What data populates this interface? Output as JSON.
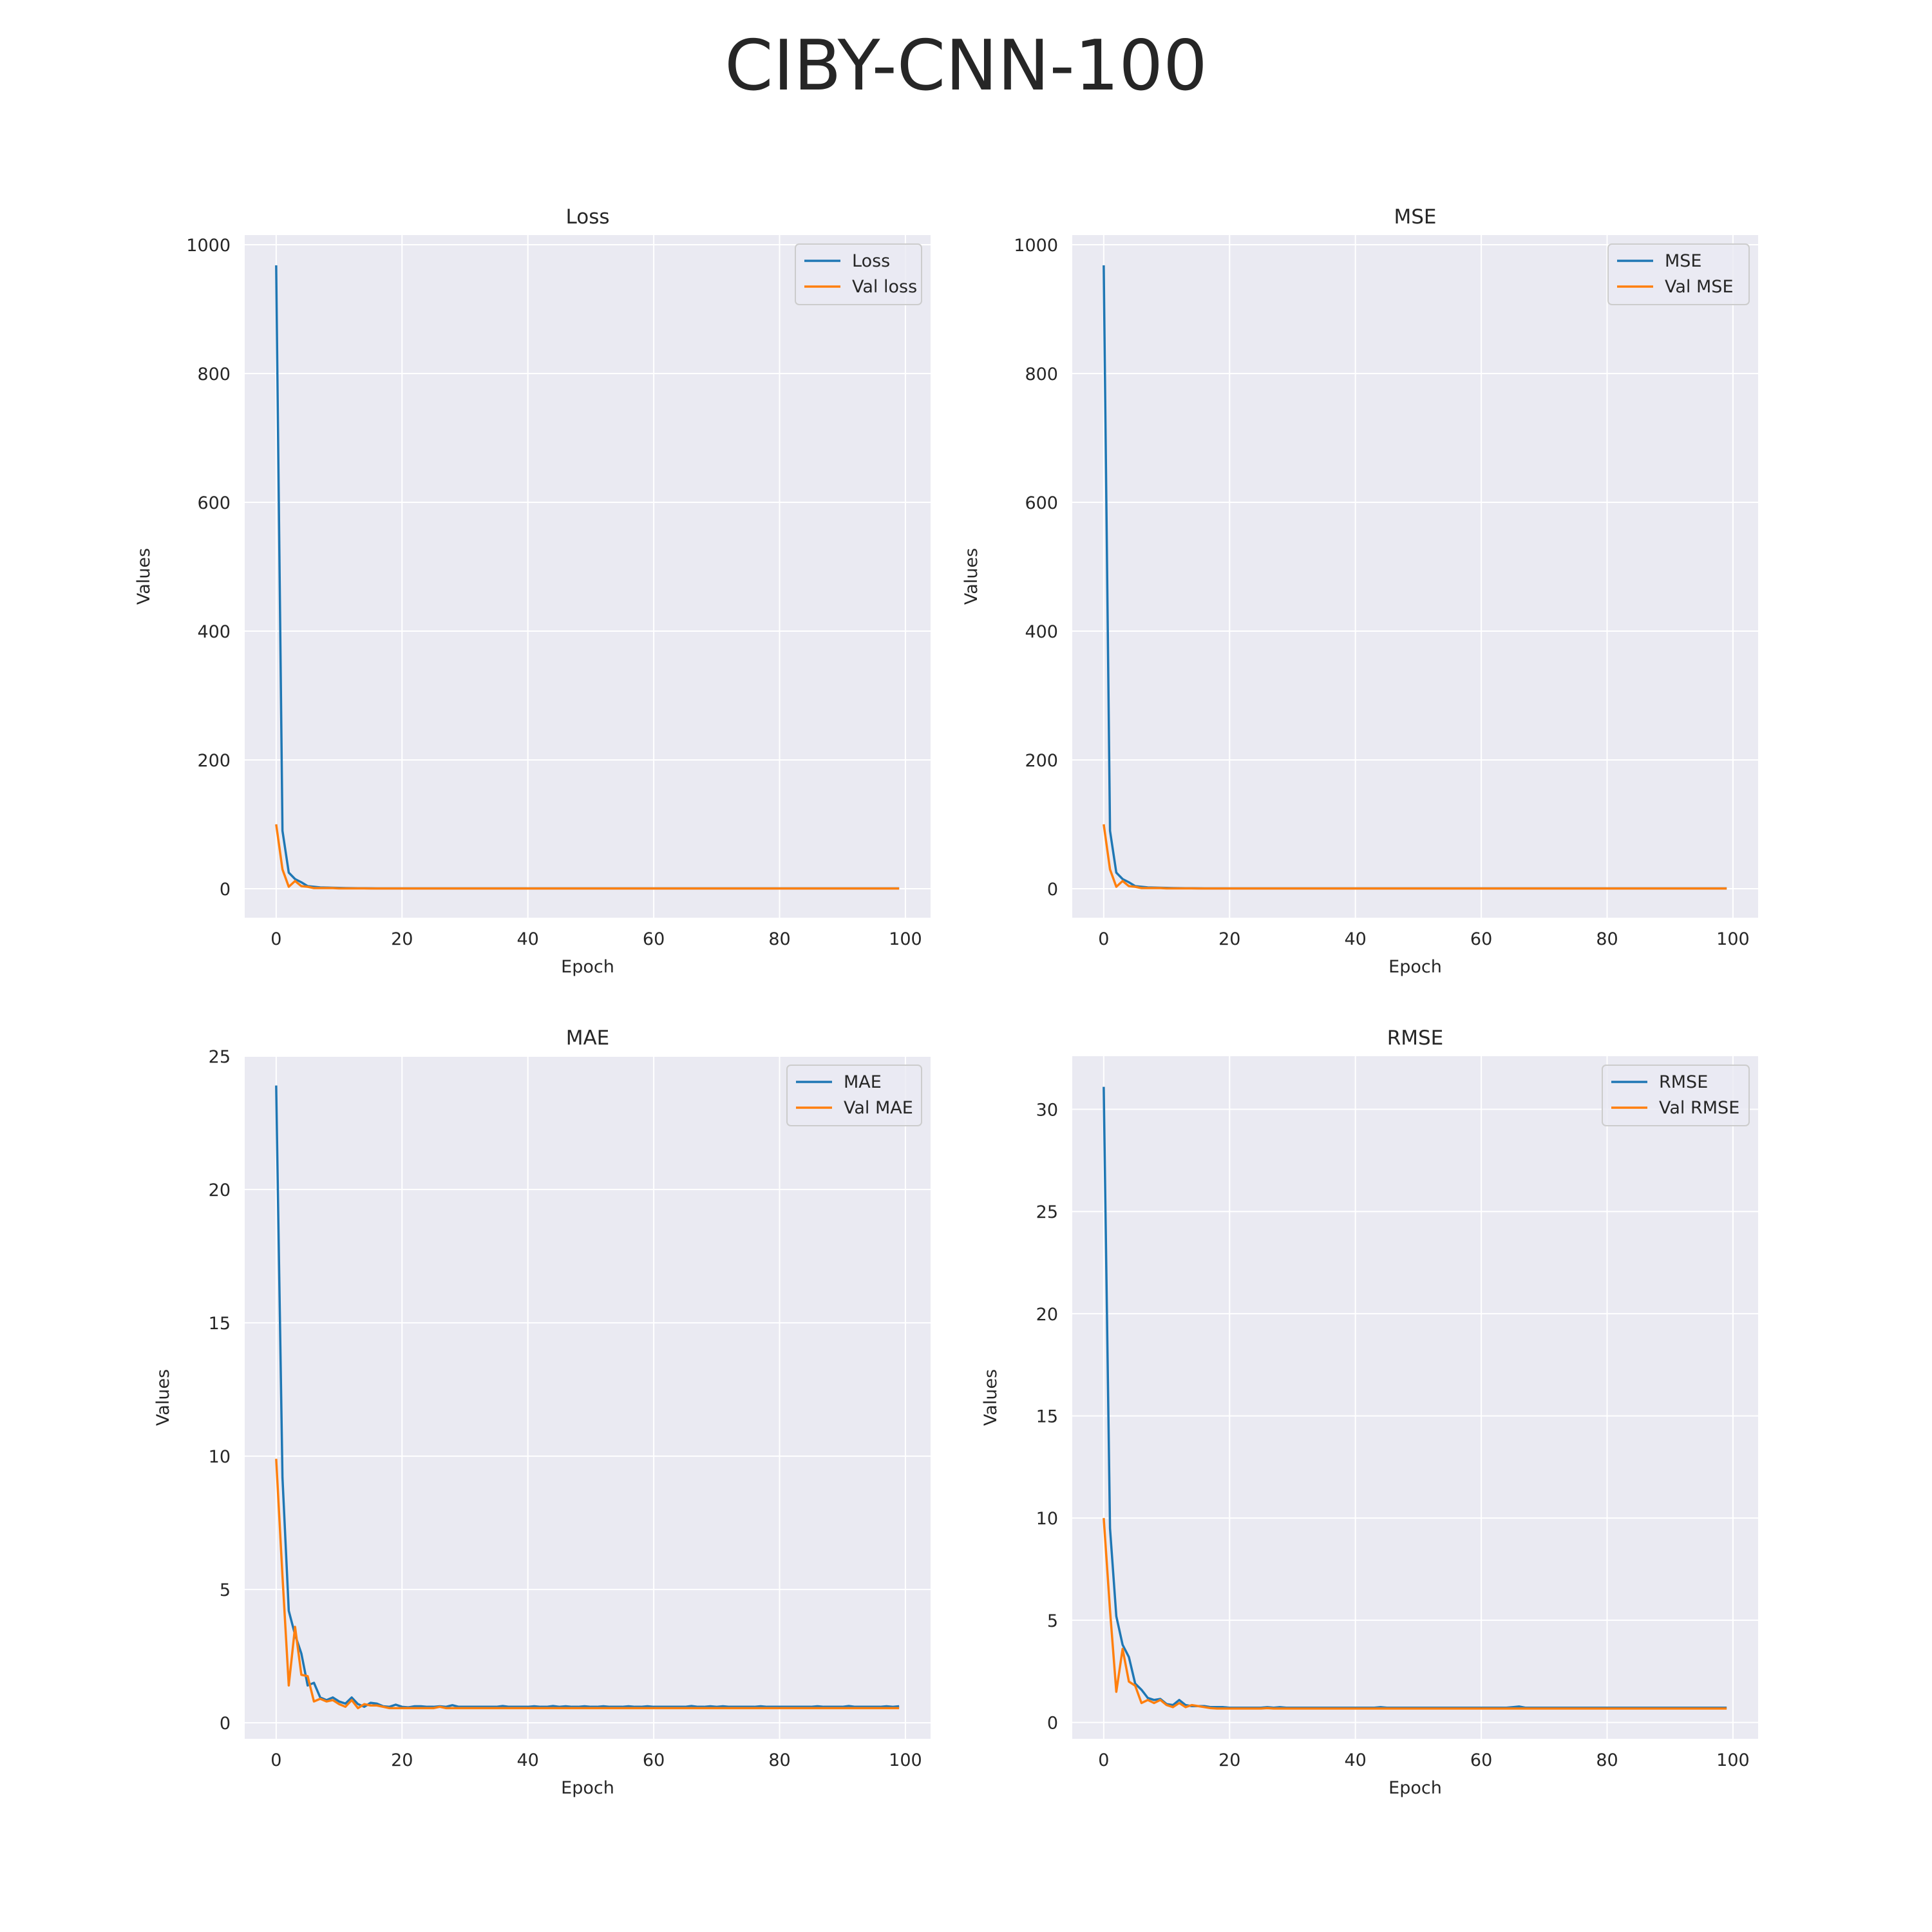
{
  "figure": {
    "title": "CIBY-CNN-100"
  },
  "colors": {
    "train": "#1f77b4",
    "val": "#ff7f0e",
    "plot_bg": "#eaeaf2",
    "grid": "#ffffff"
  },
  "chart_data": [
    {
      "type": "line",
      "title": "Loss",
      "xlabel": "Epoch",
      "ylabel": "Values",
      "xlim": [
        -5,
        104
      ],
      "ylim": [
        -45,
        1015
      ],
      "xticks": [
        0,
        20,
        40,
        60,
        80,
        100
      ],
      "xtick_labels": [
        "0",
        "20",
        "40",
        "60",
        "80",
        "100"
      ],
      "yticks": [
        0,
        200,
        400,
        600,
        800,
        1000
      ],
      "ytick_labels": [
        "0",
        "200",
        "400",
        "600",
        "800",
        "1000"
      ],
      "grid": true,
      "legend": "top-right",
      "x": {
        "start": 0,
        "end": 99,
        "step": 1
      },
      "series": [
        {
          "name": "Loss",
          "color": "#1f77b4",
          "values": [
            968,
            90,
            25,
            15,
            10,
            4,
            3,
            2,
            1.8,
            1.5,
            1.2,
            1,
            0.9,
            0.8,
            0.7,
            0.6,
            0.55,
            0.5,
            0.5,
            0.5,
            0.5,
            0.5,
            0.5,
            0.5,
            0.5,
            0.5,
            0.5,
            0.5,
            0.5,
            0.5,
            0.5,
            0.5,
            0.5,
            0.5,
            0.5,
            0.5,
            0.5,
            0.5,
            0.5,
            0.5,
            0.5,
            0.5,
            0.5,
            0.5,
            0.5,
            0.5,
            0.5,
            0.5,
            0.5,
            0.5,
            0.5,
            0.5,
            0.5,
            0.5,
            0.5,
            0.5,
            0.5,
            0.5,
            0.5,
            0.5,
            0.5,
            0.5,
            0.5,
            0.5,
            0.5,
            0.5,
            0.5,
            0.5,
            0.5,
            0.5,
            0.5,
            0.5,
            0.5,
            0.5,
            0.5,
            0.5,
            0.5,
            0.5,
            0.5,
            0.5,
            0.5,
            0.5,
            0.5,
            0.5,
            0.5,
            0.5,
            0.5,
            0.5,
            0.5,
            0.5,
            0.5,
            0.5,
            0.5,
            0.5,
            0.5,
            0.5,
            0.5,
            0.5,
            0.5,
            0.5
          ]
        },
        {
          "name": "Val loss",
          "color": "#ff7f0e",
          "values": [
            100,
            30,
            3,
            12,
            4,
            3,
            1,
            1,
            1,
            1,
            0.5,
            0.5,
            0.5,
            0.5,
            0.5,
            0.4,
            0.4,
            0.4,
            0.4,
            0.4,
            0.4,
            0.4,
            0.4,
            0.4,
            0.4,
            0.4,
            0.4,
            0.4,
            0.4,
            0.4,
            0.4,
            0.4,
            0.4,
            0.4,
            0.4,
            0.4,
            0.4,
            0.4,
            0.4,
            0.4,
            0.4,
            0.4,
            0.4,
            0.4,
            0.4,
            0.4,
            0.4,
            0.4,
            0.4,
            0.4,
            0.4,
            0.4,
            0.4,
            0.4,
            0.4,
            0.4,
            0.4,
            0.4,
            0.4,
            0.4,
            0.4,
            0.4,
            0.4,
            0.4,
            0.4,
            0.4,
            0.4,
            0.4,
            0.4,
            0.4,
            0.4,
            0.4,
            0.4,
            0.4,
            0.4,
            0.4,
            0.4,
            0.4,
            0.4,
            0.4,
            0.4,
            0.4,
            0.4,
            0.4,
            0.4,
            0.4,
            0.4,
            0.4,
            0.4,
            0.4,
            0.4,
            0.4,
            0.4,
            0.4,
            0.4,
            0.4,
            0.4,
            0.4,
            0.4,
            0.4
          ]
        }
      ]
    },
    {
      "type": "line",
      "title": "MSE",
      "xlabel": "Epoch",
      "ylabel": "Values",
      "xlim": [
        -5,
        104
      ],
      "ylim": [
        -45,
        1015
      ],
      "xticks": [
        0,
        20,
        40,
        60,
        80,
        100
      ],
      "xtick_labels": [
        "0",
        "20",
        "40",
        "60",
        "80",
        "100"
      ],
      "yticks": [
        0,
        200,
        400,
        600,
        800,
        1000
      ],
      "ytick_labels": [
        "0",
        "200",
        "400",
        "600",
        "800",
        "1000"
      ],
      "grid": true,
      "legend": "top-right",
      "x": {
        "start": 0,
        "end": 99,
        "step": 1
      },
      "series": [
        {
          "name": "MSE",
          "color": "#1f77b4",
          "values": [
            968,
            90,
            25,
            15,
            10,
            4,
            3,
            2,
            1.8,
            1.5,
            1.2,
            1,
            0.9,
            0.8,
            0.7,
            0.6,
            0.55,
            0.5,
            0.5,
            0.5,
            0.5,
            0.5,
            0.5,
            0.5,
            0.5,
            0.5,
            0.5,
            0.5,
            0.5,
            0.5,
            0.5,
            0.5,
            0.5,
            0.5,
            0.5,
            0.5,
            0.5,
            0.5,
            0.5,
            0.5,
            0.5,
            0.5,
            0.5,
            0.5,
            0.5,
            0.5,
            0.5,
            0.5,
            0.5,
            0.5,
            0.5,
            0.5,
            0.5,
            0.5,
            0.5,
            0.5,
            0.5,
            0.5,
            0.5,
            0.5,
            0.5,
            0.5,
            0.5,
            0.5,
            0.5,
            0.5,
            0.5,
            0.5,
            0.5,
            0.5,
            0.5,
            0.5,
            0.5,
            0.5,
            0.5,
            0.5,
            0.5,
            0.5,
            0.5,
            0.5,
            0.5,
            0.5,
            0.5,
            0.5,
            0.5,
            0.5,
            0.5,
            0.5,
            0.5,
            0.5,
            0.5,
            0.5,
            0.5,
            0.5,
            0.5,
            0.5,
            0.5,
            0.5,
            0.5,
            0.5
          ]
        },
        {
          "name": "Val MSE",
          "color": "#ff7f0e",
          "values": [
            100,
            30,
            3,
            12,
            4,
            3,
            1,
            1,
            1,
            1,
            0.5,
            0.5,
            0.5,
            0.5,
            0.5,
            0.4,
            0.4,
            0.4,
            0.4,
            0.4,
            0.4,
            0.4,
            0.4,
            0.4,
            0.4,
            0.4,
            0.4,
            0.4,
            0.4,
            0.4,
            0.4,
            0.4,
            0.4,
            0.4,
            0.4,
            0.4,
            0.4,
            0.4,
            0.4,
            0.4,
            0.4,
            0.4,
            0.4,
            0.4,
            0.4,
            0.4,
            0.4,
            0.4,
            0.4,
            0.4,
            0.4,
            0.4,
            0.4,
            0.4,
            0.4,
            0.4,
            0.4,
            0.4,
            0.4,
            0.4,
            0.4,
            0.4,
            0.4,
            0.4,
            0.4,
            0.4,
            0.4,
            0.4,
            0.4,
            0.4,
            0.4,
            0.4,
            0.4,
            0.4,
            0.4,
            0.4,
            0.4,
            0.4,
            0.4,
            0.4,
            0.4,
            0.4,
            0.4,
            0.4,
            0.4,
            0.4,
            0.4,
            0.4,
            0.4,
            0.4,
            0.4,
            0.4,
            0.4,
            0.4,
            0.4,
            0.4,
            0.4,
            0.4,
            0.4,
            0.4
          ]
        }
      ]
    },
    {
      "type": "line",
      "title": "MAE",
      "xlabel": "Epoch",
      "ylabel": "Values",
      "xlim": [
        -5,
        104
      ],
      "ylim": [
        -0.6,
        25
      ],
      "xticks": [
        0,
        20,
        40,
        60,
        80,
        100
      ],
      "xtick_labels": [
        "0",
        "20",
        "40",
        "60",
        "80",
        "100"
      ],
      "yticks": [
        0,
        5,
        10,
        15,
        20,
        25
      ],
      "ytick_labels": [
        "0",
        "5",
        "10",
        "15",
        "20",
        "25"
      ],
      "grid": true,
      "legend": "top-right",
      "x": {
        "start": 0,
        "end": 99,
        "step": 1
      },
      "series": [
        {
          "name": "MAE",
          "color": "#1f77b4",
          "values": [
            23.9,
            9.2,
            4.2,
            3.3,
            2.6,
            1.4,
            1.5,
            0.95,
            0.85,
            0.95,
            0.8,
            0.72,
            0.95,
            0.7,
            0.6,
            0.75,
            0.72,
            0.62,
            0.6,
            0.68,
            0.6,
            0.58,
            0.62,
            0.62,
            0.6,
            0.6,
            0.62,
            0.6,
            0.66,
            0.6,
            0.6,
            0.6,
            0.6,
            0.6,
            0.6,
            0.6,
            0.63,
            0.6,
            0.6,
            0.6,
            0.6,
            0.62,
            0.6,
            0.6,
            0.63,
            0.6,
            0.62,
            0.6,
            0.6,
            0.62,
            0.6,
            0.6,
            0.62,
            0.6,
            0.6,
            0.6,
            0.62,
            0.6,
            0.6,
            0.62,
            0.6,
            0.6,
            0.6,
            0.6,
            0.6,
            0.6,
            0.63,
            0.6,
            0.6,
            0.62,
            0.6,
            0.62,
            0.6,
            0.6,
            0.6,
            0.6,
            0.6,
            0.62,
            0.6,
            0.6,
            0.6,
            0.6,
            0.6,
            0.6,
            0.6,
            0.6,
            0.62,
            0.6,
            0.6,
            0.6,
            0.6,
            0.63,
            0.6,
            0.6,
            0.6,
            0.6,
            0.6,
            0.62,
            0.6,
            0.62
          ]
        },
        {
          "name": "Val MAE",
          "color": "#ff7f0e",
          "values": [
            9.9,
            5.5,
            1.4,
            3.6,
            1.8,
            1.75,
            0.8,
            0.9,
            0.8,
            0.85,
            0.7,
            0.6,
            0.85,
            0.55,
            0.7,
            0.65,
            0.65,
            0.6,
            0.55,
            0.55,
            0.55,
            0.55,
            0.55,
            0.55,
            0.55,
            0.55,
            0.6,
            0.55,
            0.55,
            0.55,
            0.55,
            0.55,
            0.55,
            0.55,
            0.55,
            0.55,
            0.55,
            0.55,
            0.55,
            0.55,
            0.55,
            0.55,
            0.55,
            0.55,
            0.55,
            0.55,
            0.55,
            0.55,
            0.55,
            0.55,
            0.55,
            0.55,
            0.55,
            0.55,
            0.55,
            0.55,
            0.55,
            0.55,
            0.55,
            0.55,
            0.55,
            0.55,
            0.55,
            0.55,
            0.55,
            0.55,
            0.55,
            0.55,
            0.55,
            0.55,
            0.55,
            0.55,
            0.55,
            0.55,
            0.55,
            0.55,
            0.55,
            0.55,
            0.55,
            0.55,
            0.55,
            0.55,
            0.55,
            0.55,
            0.55,
            0.55,
            0.55,
            0.55,
            0.55,
            0.55,
            0.55,
            0.55,
            0.55,
            0.55,
            0.55,
            0.55,
            0.55,
            0.55,
            0.55,
            0.55
          ]
        }
      ]
    },
    {
      "type": "line",
      "title": "RMSE",
      "xlabel": "Epoch",
      "ylabel": "Values",
      "xlim": [
        -5,
        104
      ],
      "ylim": [
        -0.8,
        32.6
      ],
      "xticks": [
        0,
        20,
        40,
        60,
        80,
        100
      ],
      "xtick_labels": [
        "0",
        "20",
        "40",
        "60",
        "80",
        "100"
      ],
      "yticks": [
        0,
        5,
        10,
        15,
        20,
        25,
        30
      ],
      "ytick_labels": [
        "0",
        "5",
        "10",
        "15",
        "20",
        "25",
        "30"
      ],
      "grid": true,
      "legend": "top-right",
      "x": {
        "start": 0,
        "end": 99,
        "step": 1
      },
      "series": [
        {
          "name": "RMSE",
          "color": "#1f77b4",
          "values": [
            31.1,
            9.5,
            5.2,
            3.8,
            3.2,
            1.9,
            1.6,
            1.2,
            1.1,
            1.15,
            0.9,
            0.85,
            1.1,
            0.85,
            0.8,
            0.8,
            0.8,
            0.75,
            0.75,
            0.75,
            0.72,
            0.72,
            0.72,
            0.72,
            0.72,
            0.72,
            0.75,
            0.72,
            0.75,
            0.72,
            0.72,
            0.72,
            0.72,
            0.72,
            0.72,
            0.72,
            0.72,
            0.72,
            0.72,
            0.72,
            0.72,
            0.72,
            0.72,
            0.72,
            0.75,
            0.72,
            0.72,
            0.72,
            0.72,
            0.72,
            0.72,
            0.72,
            0.72,
            0.72,
            0.72,
            0.72,
            0.72,
            0.72,
            0.72,
            0.72,
            0.72,
            0.72,
            0.72,
            0.72,
            0.72,
            0.75,
            0.78,
            0.72,
            0.72,
            0.72,
            0.72,
            0.72,
            0.72,
            0.72,
            0.72,
            0.72,
            0.72,
            0.72,
            0.72,
            0.72,
            0.72,
            0.72,
            0.72,
            0.72,
            0.72,
            0.72,
            0.72,
            0.72,
            0.72,
            0.72,
            0.72,
            0.72,
            0.72,
            0.72,
            0.72,
            0.72,
            0.72,
            0.72,
            0.72,
            0.72
          ]
        },
        {
          "name": "Val RMSE",
          "color": "#ff7f0e",
          "values": [
            10,
            5.5,
            1.5,
            3.6,
            2,
            1.8,
            0.95,
            1.1,
            0.95,
            1.1,
            0.85,
            0.75,
            0.95,
            0.75,
            0.85,
            0.8,
            0.75,
            0.7,
            0.68,
            0.68,
            0.68,
            0.68,
            0.68,
            0.68,
            0.68,
            0.68,
            0.7,
            0.68,
            0.68,
            0.68,
            0.68,
            0.68,
            0.68,
            0.68,
            0.68,
            0.68,
            0.68,
            0.68,
            0.68,
            0.68,
            0.68,
            0.68,
            0.68,
            0.68,
            0.68,
            0.68,
            0.68,
            0.68,
            0.68,
            0.68,
            0.68,
            0.68,
            0.68,
            0.68,
            0.68,
            0.68,
            0.68,
            0.68,
            0.68,
            0.68,
            0.68,
            0.68,
            0.68,
            0.68,
            0.68,
            0.68,
            0.68,
            0.68,
            0.68,
            0.68,
            0.68,
            0.68,
            0.68,
            0.68,
            0.68,
            0.68,
            0.68,
            0.68,
            0.68,
            0.68,
            0.68,
            0.68,
            0.68,
            0.68,
            0.68,
            0.68,
            0.68,
            0.68,
            0.68,
            0.68,
            0.68,
            0.68,
            0.68,
            0.68,
            0.68,
            0.68,
            0.68,
            0.68,
            0.68,
            0.68
          ]
        }
      ]
    }
  ]
}
